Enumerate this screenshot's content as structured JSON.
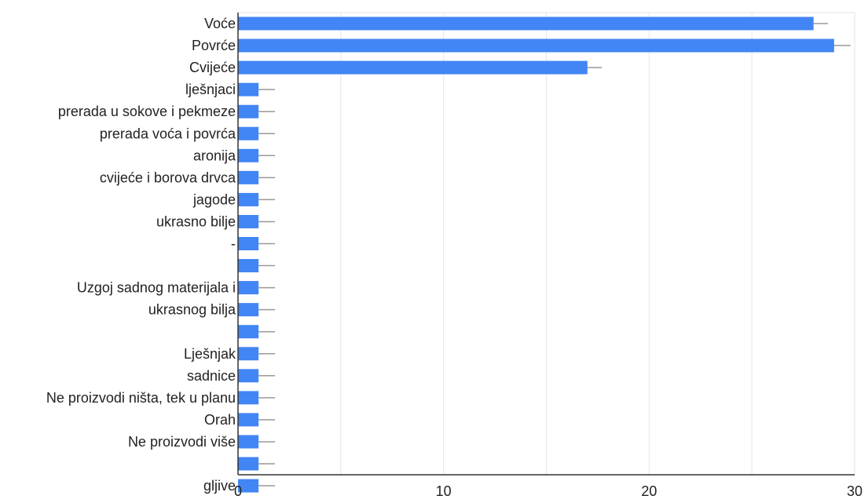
{
  "chart_data": {
    "type": "bar",
    "orientation": "horizontal",
    "title": "",
    "xlabel": "",
    "ylabel": "",
    "xlim": [
      0,
      30
    ],
    "xticks": [
      0,
      10,
      20,
      30
    ],
    "grid": true,
    "legend": "none",
    "bar_color": "#4285f4",
    "errorbar_color": "#999999",
    "axis_color": "#333333",
    "grid_color": "#e6e6e6",
    "categories": [
      "Voće",
      "Povrće",
      "Cvijeće",
      "lješnjaci",
      "prerada u sokove i pekmeze",
      "prerada voća i povrća",
      "aronija",
      "cvijeće i borova drvca",
      "jagode",
      "ukrasno bilje",
      "-",
      "",
      "Uzgoj sadnog materijala i",
      "ukrasnog bilja",
      "",
      "Lješnjak",
      "sadnice",
      "Ne proizvodi ništa, tek u planu",
      "Orah",
      "Ne proizvodi više",
      "",
      "gljive"
    ],
    "values": [
      28,
      29,
      17,
      1,
      1,
      1,
      1,
      1,
      1,
      1,
      1,
      1,
      1,
      1,
      1,
      1,
      1,
      1,
      1,
      1,
      1,
      1
    ],
    "error_high": [
      28.7,
      29.8,
      17.7,
      1.8,
      1.8,
      1.8,
      1.8,
      1.8,
      1.8,
      1.8,
      1.8,
      1.8,
      1.8,
      1.8,
      1.8,
      1.8,
      1.8,
      1.8,
      1.8,
      1.8,
      1.8,
      1.8
    ]
  }
}
